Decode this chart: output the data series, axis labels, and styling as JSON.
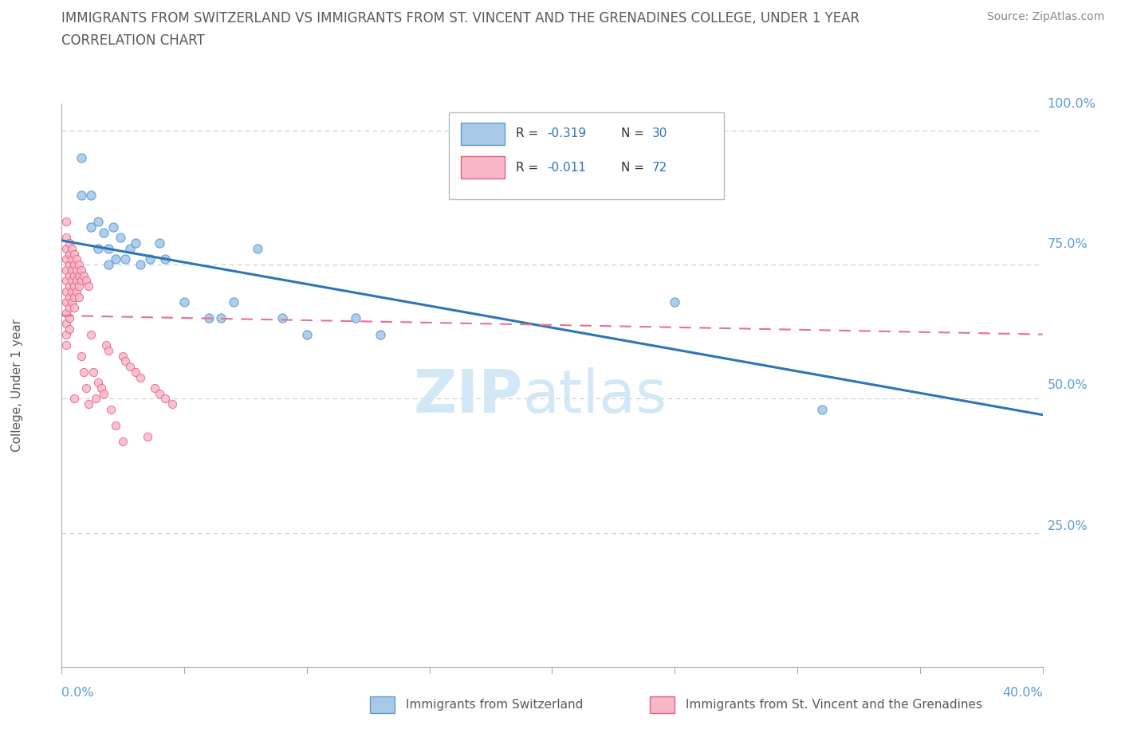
{
  "title_line1": "IMMIGRANTS FROM SWITZERLAND VS IMMIGRANTS FROM ST. VINCENT AND THE GRENADINES COLLEGE, UNDER 1 YEAR",
  "title_line2": "CORRELATION CHART",
  "source": "Source: ZipAtlas.com",
  "ylabel_label": "College, Under 1 year",
  "xlim": [
    0.0,
    0.4
  ],
  "ylim": [
    0.0,
    1.05
  ],
  "color_swiss": "#a8c8e8",
  "color_swiss_edge": "#5b9bd5",
  "color_vincent": "#f9b8c8",
  "color_vincent_edge": "#e06080",
  "color_swiss_line": "#2e75b6",
  "color_vincent_line": "#e87090",
  "color_title": "#595959",
  "color_axis_label": "#5b9bd5",
  "color_grid": "#cccccc",
  "swiss_scatter_x": [
    0.008,
    0.008,
    0.012,
    0.012,
    0.015,
    0.015,
    0.017,
    0.019,
    0.019,
    0.021,
    0.022,
    0.024,
    0.026,
    0.028,
    0.03,
    0.032,
    0.036,
    0.04,
    0.042,
    0.05,
    0.06,
    0.065,
    0.07,
    0.08,
    0.09,
    0.1,
    0.12,
    0.13,
    0.25,
    0.31
  ],
  "swiss_scatter_y": [
    0.95,
    0.88,
    0.88,
    0.82,
    0.83,
    0.78,
    0.81,
    0.78,
    0.75,
    0.82,
    0.76,
    0.8,
    0.76,
    0.78,
    0.79,
    0.75,
    0.76,
    0.79,
    0.76,
    0.68,
    0.65,
    0.65,
    0.68,
    0.78,
    0.65,
    0.62,
    0.65,
    0.62,
    0.68,
    0.48
  ],
  "vincent_scatter_x": [
    0.002,
    0.002,
    0.002,
    0.002,
    0.002,
    0.002,
    0.002,
    0.002,
    0.002,
    0.002,
    0.002,
    0.002,
    0.003,
    0.003,
    0.003,
    0.003,
    0.003,
    0.003,
    0.003,
    0.003,
    0.003,
    0.004,
    0.004,
    0.004,
    0.004,
    0.004,
    0.004,
    0.005,
    0.005,
    0.005,
    0.005,
    0.005,
    0.005,
    0.005,
    0.006,
    0.006,
    0.006,
    0.006,
    0.007,
    0.007,
    0.007,
    0.007,
    0.008,
    0.008,
    0.008,
    0.009,
    0.009,
    0.01,
    0.01,
    0.011,
    0.011,
    0.012,
    0.013,
    0.014,
    0.015,
    0.016,
    0.017,
    0.018,
    0.019,
    0.02,
    0.022,
    0.025,
    0.025,
    0.026,
    0.028,
    0.03,
    0.032,
    0.035,
    0.038,
    0.04,
    0.042,
    0.045
  ],
  "vincent_scatter_y": [
    0.83,
    0.8,
    0.78,
    0.76,
    0.74,
    0.72,
    0.7,
    0.68,
    0.66,
    0.64,
    0.62,
    0.6,
    0.79,
    0.77,
    0.75,
    0.73,
    0.71,
    0.69,
    0.67,
    0.65,
    0.63,
    0.78,
    0.76,
    0.74,
    0.72,
    0.7,
    0.68,
    0.77,
    0.75,
    0.73,
    0.71,
    0.69,
    0.67,
    0.5,
    0.76,
    0.74,
    0.72,
    0.7,
    0.75,
    0.73,
    0.71,
    0.69,
    0.74,
    0.72,
    0.58,
    0.73,
    0.55,
    0.72,
    0.52,
    0.71,
    0.49,
    0.62,
    0.55,
    0.5,
    0.53,
    0.52,
    0.51,
    0.6,
    0.59,
    0.48,
    0.45,
    0.42,
    0.58,
    0.57,
    0.56,
    0.55,
    0.54,
    0.43,
    0.52,
    0.51,
    0.5,
    0.49
  ],
  "swiss_trendline_x": [
    0.0,
    0.4
  ],
  "swiss_trendline_y": [
    0.795,
    0.47
  ],
  "vincent_trendline_x": [
    0.0,
    0.4
  ],
  "vincent_trendline_y": [
    0.655,
    0.62
  ]
}
